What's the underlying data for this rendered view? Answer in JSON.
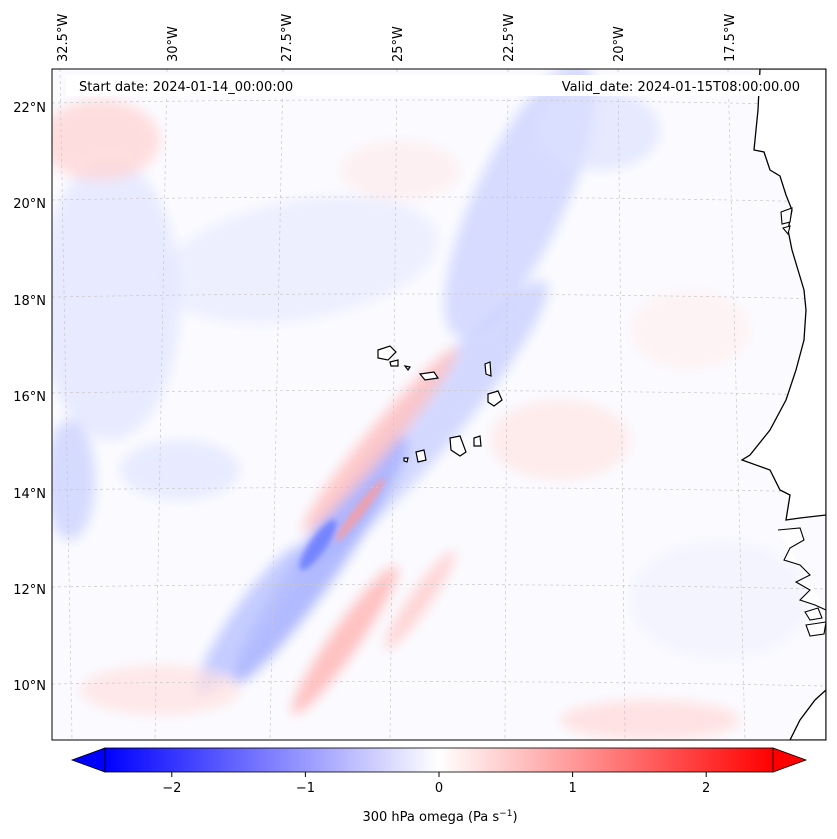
{
  "header": {
    "start_date": "Start date: 2024-01-14_00:00:00",
    "valid_date": "Valid_date: 2024-01-15T08:00:00.00"
  },
  "axes": {
    "lon_labels": [
      "32.5°W",
      "30°W",
      "27.5°W",
      "25°W",
      "22.5°W",
      "20°W",
      "17.5°W"
    ],
    "lat_labels": [
      "22°N",
      "20°N",
      "18°N",
      "16°N",
      "14°N",
      "12°N",
      "10°N"
    ]
  },
  "colorbar": {
    "label_text": "300 hPa omega (Pa s",
    "label_exp": "−1",
    "label_close": ")",
    "range": [
      -2.5,
      2.5
    ],
    "ticks": [
      {
        "value": -2,
        "text": "−2"
      },
      {
        "value": -1,
        "text": "−1"
      },
      {
        "value": 0,
        "text": "0"
      },
      {
        "value": 1,
        "text": "1"
      },
      {
        "value": 2,
        "text": "2"
      }
    ],
    "colors": {
      "negative": "#0000ff",
      "zero": "#ffffff",
      "positive": "#ff0000"
    }
  },
  "map": {
    "land_color": "#ffffff",
    "coastline_color": "#000000",
    "grid_color": "#cccccc"
  }
}
